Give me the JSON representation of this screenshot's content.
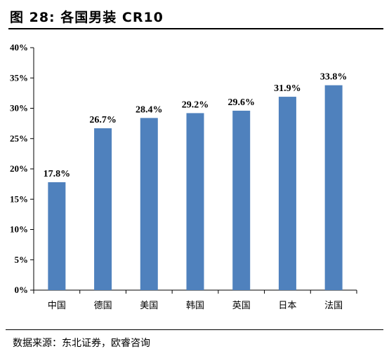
{
  "header": {
    "title": "图 28: 各国男装 CR10"
  },
  "footer": {
    "source": "数据来源：东北证券，欧睿咨询"
  },
  "chart_data": {
    "type": "bar",
    "categories": [
      "中国",
      "德国",
      "美国",
      "韩国",
      "英国",
      "日本",
      "法国"
    ],
    "values": [
      17.8,
      26.7,
      28.4,
      29.2,
      29.6,
      31.9,
      33.8
    ],
    "data_labels": [
      "17.8%",
      "26.7%",
      "28.4%",
      "29.2%",
      "29.6%",
      "31.9%",
      "33.8%"
    ],
    "yticks": [
      "0%",
      "5%",
      "10%",
      "15%",
      "20%",
      "25%",
      "30%",
      "35%",
      "40%"
    ],
    "ylim": [
      0,
      40
    ],
    "title": "",
    "xlabel": "",
    "ylabel": "",
    "grid": false,
    "bar_color": "#4f81bd"
  }
}
